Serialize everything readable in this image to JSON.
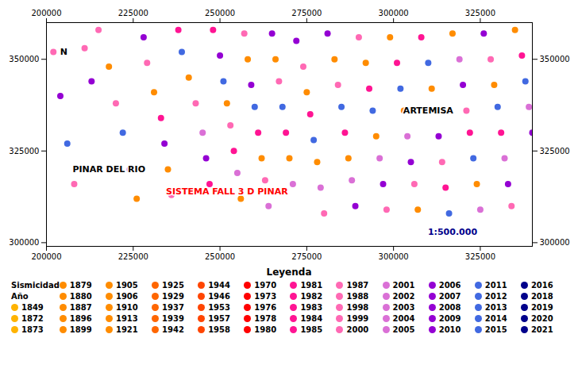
{
  "chart_data": {
    "type": "scatter",
    "title": "Leyenda",
    "x": [
      202000,
      204000,
      206000,
      208000,
      211000,
      213000,
      215000,
      218000,
      220000,
      222000,
      224000,
      226000,
      228000,
      229000,
      231000,
      233000,
      234000,
      235000,
      236000,
      238000,
      239000,
      241000,
      243000,
      245000,
      246000,
      247000,
      248000,
      250000,
      251000,
      252000,
      253000,
      254000,
      255000,
      256000,
      257000,
      258000,
      259000,
      260000,
      261000,
      262000,
      263000,
      264000,
      265000,
      266000,
      267000,
      268000,
      269000,
      270000,
      271000,
      272000,
      274000,
      275000,
      276000,
      277000,
      278000,
      279000,
      280000,
      281000,
      283000,
      284000,
      285000,
      286000,
      287000,
      288000,
      289000,
      290000,
      292000,
      293000,
      294000,
      295000,
      296000,
      297000,
      298000,
      299000,
      301000,
      302000,
      303000,
      304000,
      305000,
      306000,
      307000,
      308000,
      310000,
      311000,
      312000,
      313000,
      314000,
      315000,
      316000,
      317000,
      319000,
      320000,
      321000,
      322000,
      323000,
      324000,
      325000,
      326000,
      328000,
      329000,
      330000,
      331000,
      332000,
      333000,
      334000,
      335000,
      337000,
      338000,
      339000,
      340000
    ],
    "y": [
      352000,
      340000,
      327000,
      316000,
      353000,
      344000,
      358000,
      348000,
      338000,
      330000,
      320000,
      312000,
      356000,
      349000,
      341000,
      334000,
      327000,
      320000,
      313000,
      358000,
      352000,
      345000,
      338000,
      330000,
      323000,
      316000,
      358000,
      351000,
      344000,
      338000,
      332000,
      325000,
      319000,
      312000,
      357000,
      350000,
      343000,
      337000,
      330000,
      323000,
      317000,
      310000,
      357000,
      350000,
      344000,
      337000,
      330000,
      323000,
      316000,
      355000,
      348000,
      341000,
      335000,
      328000,
      322000,
      315000,
      308000,
      357000,
      350000,
      343000,
      337000,
      330000,
      323000,
      317000,
      310000,
      356000,
      349000,
      342000,
      336000,
      329000,
      323000,
      316000,
      309000,
      356000,
      349000,
      342000,
      336000,
      329000,
      322000,
      316000,
      309000,
      356000,
      349000,
      342000,
      336000,
      329000,
      322000,
      315000,
      308000,
      357000,
      350000,
      343000,
      336000,
      330000,
      323000,
      316000,
      309000,
      357000,
      350000,
      343000,
      337000,
      330000,
      323000,
      316000,
      310000,
      358000,
      351000,
      344000,
      337000,
      330000
    ],
    "colors": [
      "#FF69B4",
      "#9400D3",
      "#4169E1",
      "#FF69B4",
      "#FF69B4",
      "#9400D3",
      "#FF69B4",
      "#FF8C00",
      "#FF69B4",
      "#4169E1",
      "#DA70D6",
      "#FF8C00",
      "#9400D3",
      "#FF69B4",
      "#FF8C00",
      "#FF1493",
      "#9400D3",
      "#FF8C00",
      "#FF69B4",
      "#FF1493",
      "#4169E1",
      "#FF8C00",
      "#FF69B4",
      "#DA70D6",
      "#9400D3",
      "#FF1493",
      "#FF1493",
      "#9400D3",
      "#4169E1",
      "#FF8C00",
      "#FF69B4",
      "#FF1493",
      "#DA70D6",
      "#FF8C00",
      "#FF69B4",
      "#FF8C00",
      "#9400D3",
      "#4169E1",
      "#FF1493",
      "#FF8C00",
      "#FF69B4",
      "#DA70D6",
      "#9400D3",
      "#FF8C00",
      "#FF69B4",
      "#4169E1",
      "#FF1493",
      "#FF8C00",
      "#DA70D6",
      "#9400D3",
      "#FF69B4",
      "#FF8C00",
      "#FF1493",
      "#4169E1",
      "#FF8C00",
      "#DA70D6",
      "#FF69B4",
      "#9400D3",
      "#FF8C00",
      "#FF69B4",
      "#4169E1",
      "#FF1493",
      "#FF8C00",
      "#DA70D6",
      "#9400D3",
      "#FF69B4",
      "#FF8C00",
      "#FF1493",
      "#4169E1",
      "#FF8C00",
      "#DA70D6",
      "#9400D3",
      "#FF69B4",
      "#FF8C00",
      "#FF1493",
      "#4169E1",
      "#FF8C00",
      "#DA70D6",
      "#9400D3",
      "#FF69B4",
      "#FF8C00",
      "#FF1493",
      "#4169E1",
      "#FF8C00",
      "#DA70D6",
      "#9400D3",
      "#FF69B4",
      "#FF1493",
      "#4169E1",
      "#FF8C00",
      "#DA70D6",
      "#9400D3",
      "#FF69B4",
      "#FF1493",
      "#4169E1",
      "#FF8C00",
      "#DA70D6",
      "#9400D3",
      "#FF69B4",
      "#FF8C00",
      "#4169E1",
      "#FF1493",
      "#DA70D6",
      "#9400D3",
      "#FF69B4",
      "#FF8C00",
      "#FF1493",
      "#4169E1",
      "#DA70D6",
      "#9400D3"
    ],
    "xlim": [
      200000,
      340000
    ],
    "ylim": [
      299000,
      360000
    ],
    "xticks": [
      200000,
      225000,
      250000,
      275000,
      300000,
      325000
    ],
    "yticks": [
      300000,
      325000,
      350000
    ],
    "grid": false,
    "annotations": [
      {
        "text": "PINAR DEL RIO",
        "x": 218000,
        "y": 320000
      },
      {
        "text": "ARTEMISA",
        "x": 310000,
        "y": 336000
      },
      {
        "text": "SISTEMA FALL 3 D PINAR",
        "x": 252000,
        "y": 314000,
        "color": "red"
      },
      {
        "text": "1:500.000",
        "x": 317000,
        "y": 302950,
        "color": "#00008B"
      },
      {
        "text": "N",
        "x": 205000,
        "y": 352000
      }
    ],
    "legend_rows": [
      [
        "Sismicidad",
        "1879",
        "1905",
        "1925",
        "1944",
        "1970",
        "1981",
        "1987",
        "2001",
        "2006",
        "2011",
        "2016"
      ],
      [
        "Año",
        "1880",
        "1906",
        "1929",
        "1946",
        "1973",
        "1982",
        "1988",
        "2002",
        "2007",
        "2012",
        "2018"
      ],
      [
        "1849",
        "1887",
        "1910",
        "1937",
        "1953",
        "1976",
        "1983",
        "1998",
        "2003",
        "2008",
        "2013",
        "2019"
      ],
      [
        "1872",
        "1896",
        "1913",
        "1939",
        "1957",
        "1978",
        "1984",
        "1999",
        "2004",
        "2009",
        "2014",
        "2020"
      ],
      [
        "1873",
        "1899",
        "1921",
        "1942",
        "1958",
        "1980",
        "1985",
        "2000",
        "2005",
        "2010",
        "2015",
        "2021"
      ]
    ],
    "legend_colors": {
      "1849": "#FFB300",
      "1872": "#FFB300",
      "1873": "#FFB300",
      "1879": "#FF8C00",
      "1880": "#FF8C00",
      "1887": "#FF8C00",
      "1896": "#FF8C00",
      "1899": "#FF8C00",
      "1905": "#FF8C00",
      "1906": "#FF8C00",
      "1910": "#FF8C00",
      "1913": "#FF8C00",
      "1921": "#FF8C00",
      "1925": "#FF6600",
      "1929": "#FF6600",
      "1937": "#FF6600",
      "1939": "#FF6600",
      "1942": "#FF6600",
      "1944": "#FF4500",
      "1946": "#FF4500",
      "1953": "#FF4500",
      "1957": "#FF4500",
      "1958": "#FF4500",
      "1970": "#FF0000",
      "1973": "#FF0000",
      "1976": "#FF0000",
      "1978": "#FF0000",
      "1980": "#FF0000",
      "1981": "#FF1493",
      "1982": "#FF1493",
      "1983": "#FF1493",
      "1984": "#FF1493",
      "1985": "#FF1493",
      "1987": "#FF69B4",
      "1988": "#FF69B4",
      "1998": "#FF69B4",
      "1999": "#FF69B4",
      "2000": "#FF69B4",
      "2001": "#DA70D6",
      "2002": "#DA70D6",
      "2003": "#DA70D6",
      "2004": "#DA70D6",
      "2005": "#DA70D6",
      "2006": "#9400D3",
      "2007": "#9400D3",
      "2008": "#9400D3",
      "2009": "#9400D3",
      "2010": "#9400D3",
      "2011": "#4169E1",
      "2012": "#4169E1",
      "2013": "#4169E1",
      "2014": "#4169E1",
      "2015": "#4169E1",
      "2016": "#00008B",
      "2018": "#00008B",
      "2019": "#00008B",
      "2020": "#00008B",
      "2021": "#00008B"
    }
  }
}
